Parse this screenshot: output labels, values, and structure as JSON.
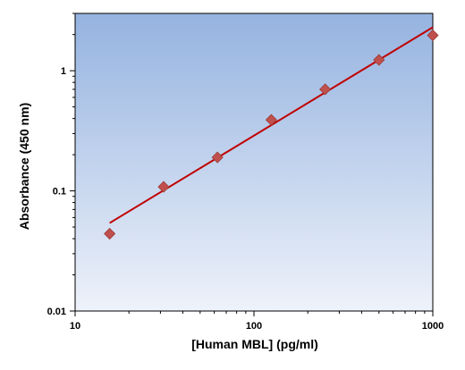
{
  "chart_data": {
    "type": "scatter",
    "xlabel": "[Human MBL] (pg/ml)",
    "ylabel": "Absorbance (450 nm)",
    "x_scale": "log",
    "y_scale": "log",
    "xlim": [
      10,
      1000
    ],
    "ylim": [
      0.01,
      3
    ],
    "x_ticks": [
      10,
      100,
      1000
    ],
    "x_tick_labels": [
      "10",
      "100",
      "1000"
    ],
    "y_ticks": [
      0.01,
      0.1,
      1
    ],
    "y_tick_labels": [
      "0.01",
      "0.1",
      "1"
    ],
    "grid": false,
    "series": [
      {
        "points": [
          {
            "x": 15.6,
            "y": 0.044
          },
          {
            "x": 31.25,
            "y": 0.108
          },
          {
            "x": 62.5,
            "y": 0.19
          },
          {
            "x": 125,
            "y": 0.39
          },
          {
            "x": 250,
            "y": 0.7
          },
          {
            "x": 500,
            "y": 1.23
          },
          {
            "x": 1000,
            "y": 1.97
          }
        ],
        "marker": "diamond",
        "color": "#c0504d"
      }
    ],
    "fit_line": {
      "type": "power",
      "x_range": [
        15.6,
        1000
      ],
      "y_range": [
        0.054,
        2.3
      ],
      "color": "#c00000"
    },
    "background": {
      "gradient_top": "#95b3e0",
      "gradient_bottom": "#eef2fa"
    }
  }
}
